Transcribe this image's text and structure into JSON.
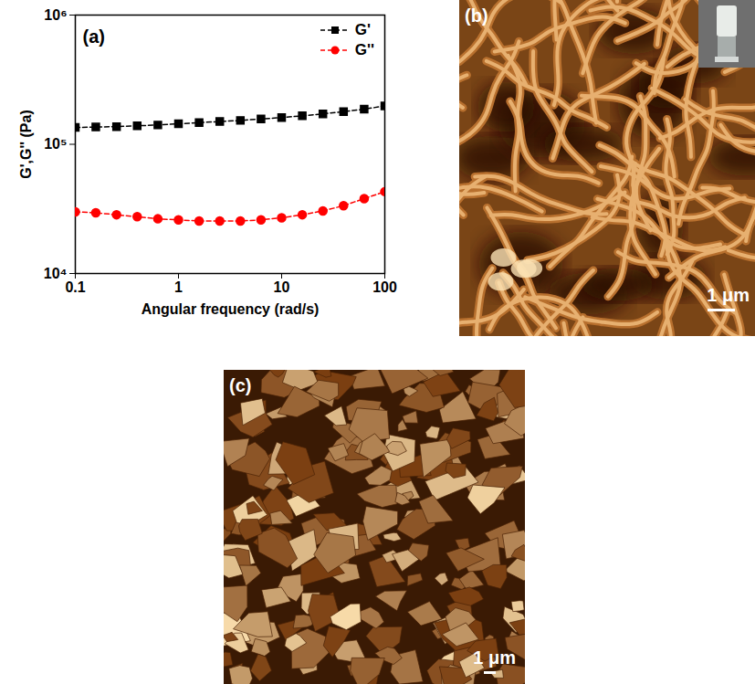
{
  "chart_data": {
    "type": "line",
    "title": "(a)",
    "x_label": "Angular frequency (rad/s)",
    "y_label": "G',G'' (Pa)",
    "log": true,
    "grid": false,
    "legend": "top-right",
    "x": [
      0.1,
      0.158,
      0.251,
      0.398,
      0.631,
      1,
      1.585,
      2.512,
      3.981,
      6.31,
      10,
      15.85,
      25.12,
      39.81,
      63.1,
      100
    ],
    "series": [
      {
        "name": "G'",
        "color": "#000000",
        "marker": "square",
        "line_style": "dashed",
        "values": [
          135000,
          136000,
          137000,
          139000,
          141000,
          144000,
          147000,
          150000,
          153000,
          157000,
          161000,
          166000,
          172000,
          179000,
          187000,
          198000
        ]
      },
      {
        "name": "G''",
        "color": "#ff0000",
        "marker": "circle",
        "line_style": "dashed",
        "values": [
          30000,
          29500,
          28500,
          27500,
          26500,
          26000,
          25500,
          25500,
          25500,
          26000,
          27000,
          28500,
          30500,
          33500,
          38000,
          43000
        ]
      }
    ],
    "xlim": [
      0.1,
      100
    ],
    "xticks": [
      0.1,
      1,
      10,
      100
    ],
    "ylim": [
      10000,
      1000000
    ],
    "yticks": [
      {
        "value": 10000,
        "label": "10⁴"
      },
      {
        "value": 100000,
        "label": "10⁵"
      },
      {
        "value": 1000000,
        "label": "10⁶"
      }
    ]
  },
  "panels": [
    {
      "label": "(b)",
      "scale_bar": "1 μm"
    },
    {
      "label": "(c)",
      "scale_bar": "1 μm"
    }
  ]
}
